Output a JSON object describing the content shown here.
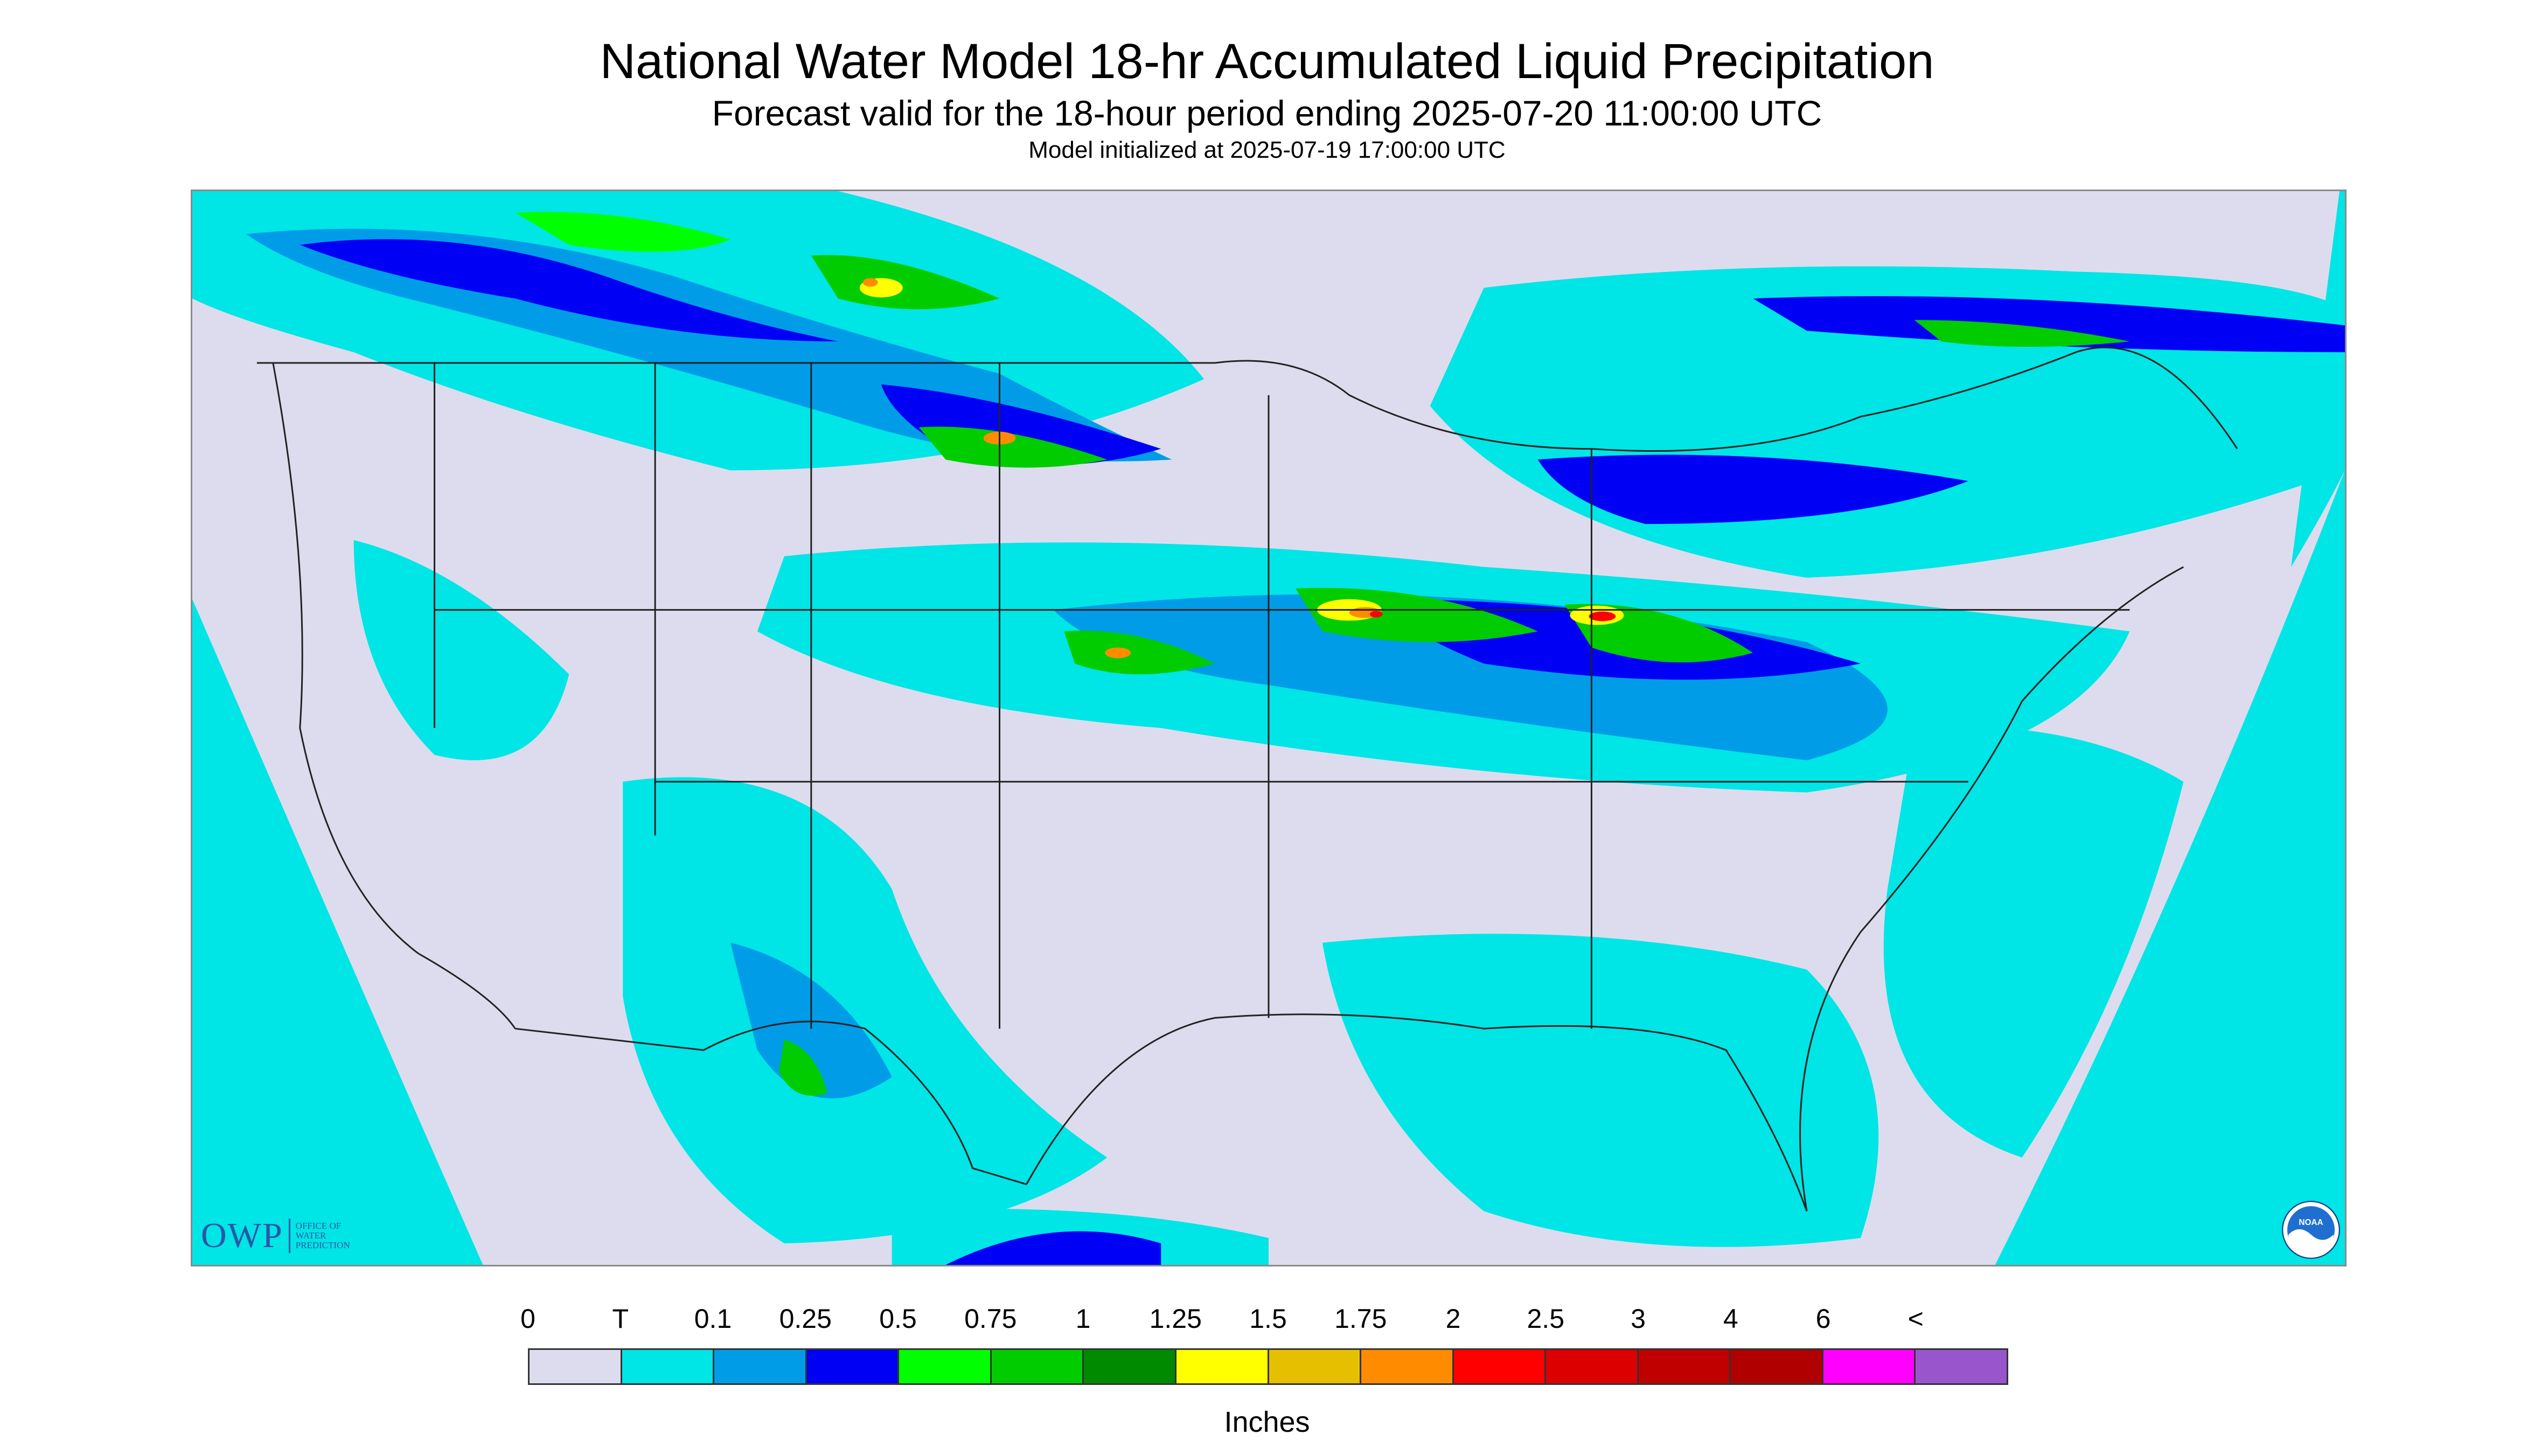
{
  "titles": {
    "main": "National Water Model 18-hr Accumulated Liquid Precipitation",
    "forecast": "Forecast valid for the 18-hour period ending 2025-07-20 11:00:00 UTC",
    "init": "Model initialized at 2025-07-19 17:00:00 UTC"
  },
  "logos": {
    "owp_text": "OWP",
    "owp_sub": [
      "OFFICE OF",
      "WATER",
      "PREDICTION"
    ],
    "noaa_icon": "noaa-emblem-icon",
    "noaa_text": "NOAA"
  },
  "legend": {
    "unit_label": "Inches",
    "tick_labels": [
      "0",
      "T",
      "0.1",
      "0.25",
      "0.5",
      "0.75",
      "1",
      "1.25",
      "1.5",
      "1.75",
      "2",
      "2.5",
      "3",
      "4",
      "6",
      "<"
    ],
    "colors": [
      "#dcdcee",
      "#00e5e5",
      "#009ce8",
      "#0000f5",
      "#00ff00",
      "#00cc00",
      "#008a00",
      "#ffff00",
      "#e6c000",
      "#ff8c00",
      "#ff0000",
      "#dd0000",
      "#c00000",
      "#b00000",
      "#ff00ff",
      "#9955cc"
    ]
  },
  "map_colors": {
    "outside_domain": "#00e5e5",
    "no_precip": "#dcdcee",
    "borders": "#222222"
  }
}
